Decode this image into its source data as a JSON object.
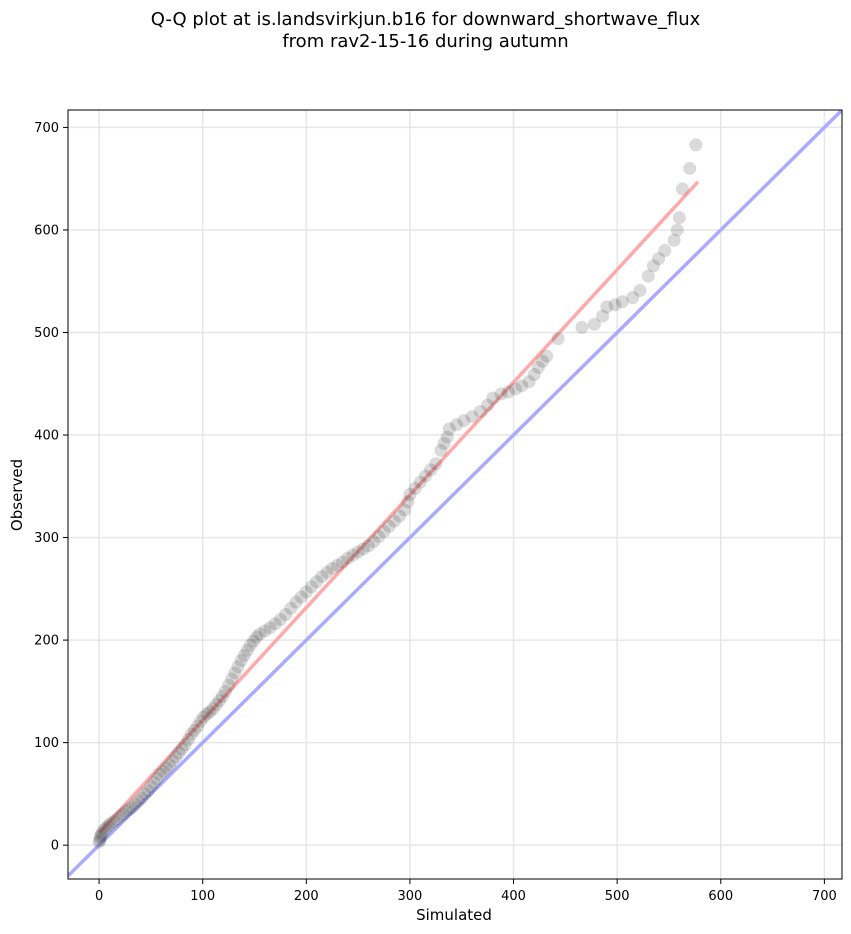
{
  "title_line1": "Q-Q plot at is.landsvirkjun.b16 for downward_shortwave_flux",
  "title_line2": "from rav2-15-16 during autumn",
  "chart_data": {
    "type": "scatter",
    "title": "Q-Q plot at is.landsvirkjun.b16 for downward_shortwave_flux from rav2-15-16 during autumn",
    "xlabel": "Simulated",
    "ylabel": "Observed",
    "xlim": [
      -30,
      717
    ],
    "ylim": [
      -33,
      717
    ],
    "xticks": [
      0,
      100,
      200,
      300,
      400,
      500,
      600,
      700
    ],
    "yticks": [
      0,
      100,
      200,
      300,
      400,
      500,
      600,
      700
    ],
    "grid": true,
    "identity_line": {
      "color": "#aaaaff",
      "from": [
        -30,
        -30
      ],
      "to": [
        717,
        717
      ]
    },
    "fit_line": {
      "color": "#ffaaaa",
      "from": [
        0,
        12
      ],
      "to": [
        578,
        647
      ]
    },
    "marker_color": "#333333",
    "points": [
      [
        0,
        3
      ],
      [
        1,
        5
      ],
      [
        1,
        8
      ],
      [
        2,
        10
      ],
      [
        3,
        12
      ],
      [
        5,
        15
      ],
      [
        7,
        17
      ],
      [
        9,
        19
      ],
      [
        11,
        21
      ],
      [
        14,
        23
      ],
      [
        17,
        25
      ],
      [
        20,
        28
      ],
      [
        23,
        30
      ],
      [
        26,
        33
      ],
      [
        29,
        35
      ],
      [
        32,
        37
      ],
      [
        35,
        40
      ],
      [
        38,
        43
      ],
      [
        41,
        46
      ],
      [
        44,
        50
      ],
      [
        47,
        53
      ],
      [
        50,
        57
      ],
      [
        53,
        61
      ],
      [
        56,
        65
      ],
      [
        59,
        69
      ],
      [
        62,
        72
      ],
      [
        65,
        75
      ],
      [
        68,
        78
      ],
      [
        71,
        82
      ],
      [
        74,
        86
      ],
      [
        77,
        90
      ],
      [
        80,
        94
      ],
      [
        83,
        98
      ],
      [
        86,
        103
      ],
      [
        89,
        108
      ],
      [
        92,
        112
      ],
      [
        95,
        116
      ],
      [
        98,
        121
      ],
      [
        101,
        125
      ],
      [
        104,
        128
      ],
      [
        107,
        130
      ],
      [
        110,
        133
      ],
      [
        113,
        137
      ],
      [
        116,
        141
      ],
      [
        119,
        145
      ],
      [
        122,
        150
      ],
      [
        125,
        156
      ],
      [
        128,
        162
      ],
      [
        131,
        168
      ],
      [
        134,
        174
      ],
      [
        137,
        180
      ],
      [
        140,
        185
      ],
      [
        143,
        190
      ],
      [
        146,
        195
      ],
      [
        149,
        199
      ],
      [
        152,
        203
      ],
      [
        155,
        206
      ],
      [
        160,
        209
      ],
      [
        165,
        212
      ],
      [
        170,
        216
      ],
      [
        175,
        220
      ],
      [
        180,
        225
      ],
      [
        185,
        231
      ],
      [
        190,
        237
      ],
      [
        195,
        242
      ],
      [
        200,
        247
      ],
      [
        205,
        252
      ],
      [
        210,
        257
      ],
      [
        215,
        262
      ],
      [
        220,
        266
      ],
      [
        225,
        270
      ],
      [
        230,
        273
      ],
      [
        235,
        276
      ],
      [
        240,
        280
      ],
      [
        245,
        283
      ],
      [
        250,
        286
      ],
      [
        255,
        289
      ],
      [
        260,
        292
      ],
      [
        265,
        296
      ],
      [
        270,
        301
      ],
      [
        275,
        306
      ],
      [
        280,
        311
      ],
      [
        285,
        316
      ],
      [
        290,
        321
      ],
      [
        295,
        327
      ],
      [
        298,
        335
      ],
      [
        300,
        342
      ],
      [
        305,
        348
      ],
      [
        310,
        354
      ],
      [
        315,
        360
      ],
      [
        320,
        366
      ],
      [
        325,
        372
      ],
      [
        330,
        385
      ],
      [
        333,
        392
      ],
      [
        336,
        398
      ],
      [
        338,
        406
      ],
      [
        345,
        410
      ],
      [
        352,
        414
      ],
      [
        360,
        418
      ],
      [
        368,
        423
      ],
      [
        375,
        429
      ],
      [
        380,
        436
      ],
      [
        388,
        440
      ],
      [
        395,
        442
      ],
      [
        402,
        445
      ],
      [
        408,
        448
      ],
      [
        415,
        452
      ],
      [
        420,
        459
      ],
      [
        424,
        466
      ],
      [
        428,
        472
      ],
      [
        432,
        477
      ],
      [
        443,
        494
      ],
      [
        466,
        505
      ],
      [
        478,
        508
      ],
      [
        486,
        516
      ],
      [
        490,
        525
      ],
      [
        498,
        527
      ],
      [
        505,
        530
      ],
      [
        515,
        534
      ],
      [
        522,
        541
      ],
      [
        530,
        555
      ],
      [
        535,
        565
      ],
      [
        540,
        572
      ],
      [
        546,
        580
      ],
      [
        555,
        590
      ],
      [
        558,
        600
      ],
      [
        560,
        612
      ],
      [
        563,
        640
      ],
      [
        570,
        660
      ],
      [
        576,
        683
      ]
    ]
  }
}
